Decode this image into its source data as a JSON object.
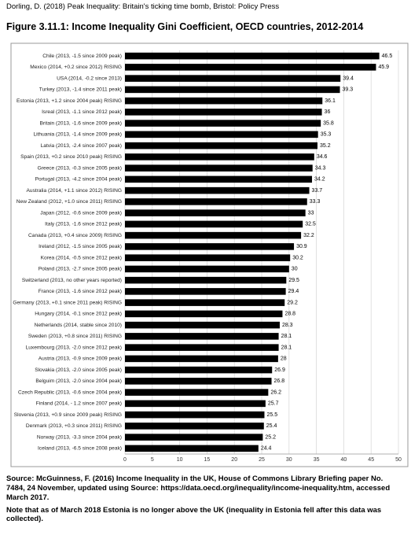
{
  "header": "Dorling, D. (2018) Peak Inequality: Britain's ticking time bomb, Bristol: Policy Press",
  "chart_data": {
    "type": "bar",
    "orientation": "horizontal",
    "title": "Figure 3.11.1: Income Inequality Gini Coefficient, OECD countries, 2012-2014",
    "categories": [
      "Chile (2013, -1.5 since 2009 peak)",
      "Mexico (2014, +0.2 since 2012) RISING",
      "USA (2014, -0.2 since 2013)",
      "Turkey (2013, -1.4 since 2011 peak)",
      "Estonia (2013, +1.2 since 2004 peak) RISING",
      "Isreal (2013, -1.1 since 2012 peak)",
      "Britain (2013, -1.6 since 2009 peak)",
      "Lithuania (2013, -1.4 since 2009 peak)",
      "Latvia (2013, -2.4 since 2007 peak)",
      "Spain (2013, +0.2 since 2010 peak) RISING",
      "Greece (2013, -0.3 since 2005 peak)",
      "Portugal (2013, -4.2 since 2004 peak)",
      "Australia (2014, +1.1 since 2012) RISING",
      "New Zealand (2012, +1.0 since 2011) RISING",
      "Japan (2012, -0.6 since 2009 peak)",
      "Italy (2013, -1.6 since 2012 peak)",
      "Canada (2013, +0.4 since 2009) RISING",
      "Ireland (2012, -1.5 since 2005 peak)",
      "Korea (2014, -0.5 since 2012 peak)",
      "Poland (2013, -2.7 since 2005 peak)",
      "Switzerland (2013, no other years reported)",
      "France (2013, -1.6 since 2012 peak)",
      "Germany (2013, +0.1 since 2011 peak) RISING",
      "Hungary (2014, -0.1 since 2012 peak)",
      "Netherlands (2014, stable since 2010)",
      "Sweden (2013, +0.8 since 2011) RISING",
      "Luxembourg (2013, -2.0 since 2012 peak)",
      "Austria (2013, -0.9 since 2009 peak)",
      "Slovakia (2013, -2.0 since 2005 peak)",
      "Belguim (2013, -2.0 since 2004 peak)",
      "Czech Republic (2013, -0.6 since 2004 peak)",
      "Finland (2014, - 1.2 since 2007 peak)",
      "Slovenia (2013, +0.9 since 2009 peak) RISING",
      "Denmark (2013, +0.3 since 2011) RISING",
      "Norway (2013, -3.3 since 2004 peak)",
      "Iceland (2013, -6.5 since 2008 peak)"
    ],
    "values": [
      46.5,
      45.9,
      39.4,
      39.3,
      36.1,
      36,
      35.8,
      35.3,
      35.2,
      34.6,
      34.3,
      34.2,
      33.7,
      33.3,
      33,
      32.5,
      32.2,
      30.9,
      30.2,
      30,
      29.5,
      29.4,
      29.2,
      28.8,
      28.3,
      28.1,
      28.1,
      28,
      26.9,
      26.8,
      26.2,
      25.7,
      25.5,
      25.4,
      25.2,
      24.4
    ],
    "color": "#000000",
    "xlim": [
      0,
      50
    ],
    "xticks": [
      0,
      5,
      10,
      15,
      20,
      25,
      30,
      35,
      40,
      45,
      50
    ],
    "grid": true
  },
  "source": "Source: McGuinness, F. (2016) Income Inequality in the UK, House of Commons Library Briefing paper No. 7484, 24 November, updated using Source: https://data.oecd.org/inequality/income-inequality.htm, accessed March 2017.",
  "note": "Note that as of March 2018 Estonia is no longer above the UK (inequality in Estonia fell after this data was collected)."
}
